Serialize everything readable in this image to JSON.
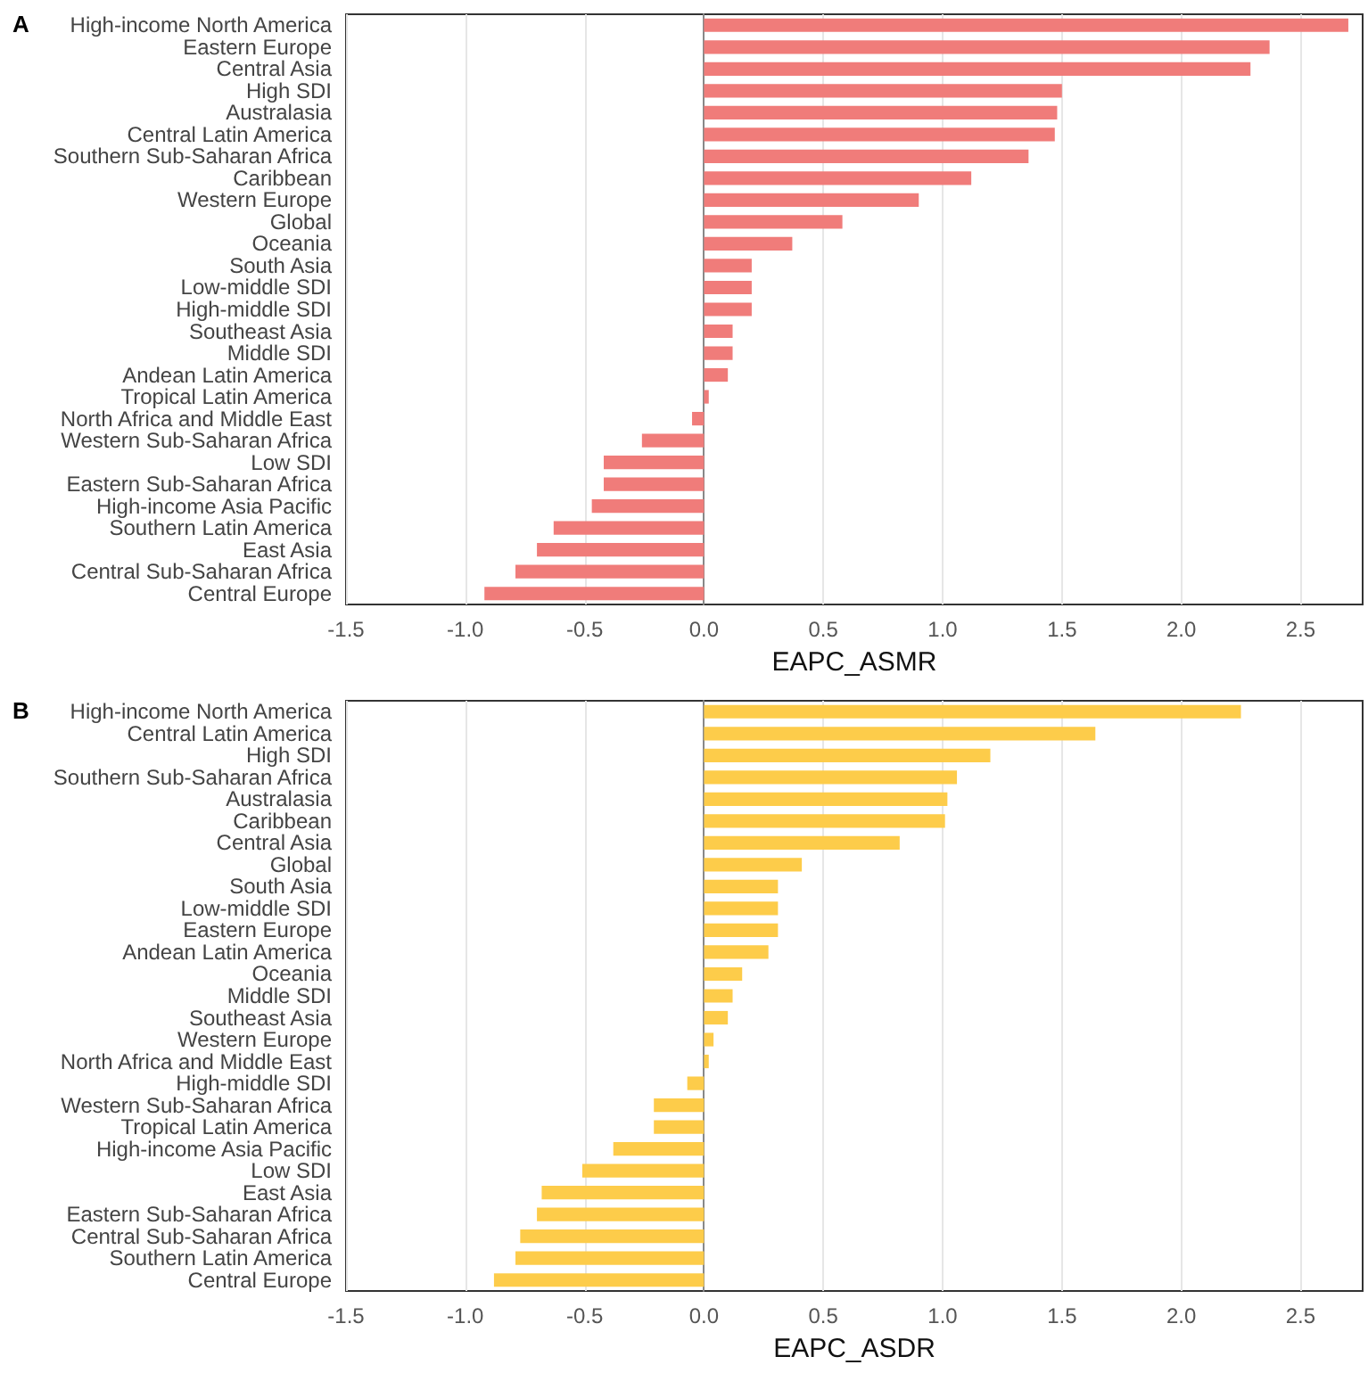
{
  "chart_data": [
    {
      "type": "bar",
      "orientation": "horizontal",
      "title": "A",
      "xlabel": "EAPC_ASMR",
      "color": "#f07c7a",
      "grid": "x",
      "xlim": [
        -1.5,
        2.76
      ],
      "xticks": [
        {
          "value": -1.5,
          "label": "-1.5"
        },
        {
          "value": -1,
          "label": "-1.0"
        },
        {
          "value": -0.5,
          "label": "-0.5"
        },
        {
          "value": 0,
          "label": "0.0"
        },
        {
          "value": 0.5,
          "label": "0.5"
        },
        {
          "value": 1,
          "label": "1.0"
        },
        {
          "value": 1.5,
          "label": "1.5"
        },
        {
          "value": 2,
          "label": "2.0"
        },
        {
          "value": 2.5,
          "label": "2.5"
        }
      ],
      "categories": [
        "High-income North America",
        "Eastern Europe",
        "Central Asia",
        "High SDI",
        "Australasia",
        "Central Latin America",
        "Southern Sub-Saharan Africa",
        "Caribbean",
        "Western Europe",
        "Global",
        "Oceania",
        "South Asia",
        "Low-middle SDI",
        "High-middle SDI",
        "Southeast Asia",
        "Middle SDI",
        "Andean Latin America",
        "Tropical Latin America",
        "North Africa and Middle East",
        "Western Sub-Saharan Africa",
        "Low SDI",
        "Eastern Sub-Saharan Africa",
        "High-income Asia Pacific",
        "Southern Latin America",
        "East Asia",
        "Central Sub-Saharan Africa",
        "Central Europe"
      ],
      "values": [
        2.7,
        2.37,
        2.29,
        1.5,
        1.48,
        1.47,
        1.36,
        1.12,
        0.9,
        0.58,
        0.37,
        0.2,
        0.2,
        0.2,
        0.12,
        0.12,
        0.1,
        0.02,
        -0.05,
        -0.26,
        -0.42,
        -0.42,
        -0.47,
        -0.63,
        -0.7,
        -0.79,
        -0.92
      ]
    },
    {
      "type": "bar",
      "orientation": "horizontal",
      "title": "B",
      "xlabel": "EAPC_ASDR",
      "color": "#fdcc4a",
      "grid": "x",
      "xlim": [
        -1.5,
        2.76
      ],
      "xticks": [
        {
          "value": -1.5,
          "label": "-1.5"
        },
        {
          "value": -1,
          "label": "-1.0"
        },
        {
          "value": -0.5,
          "label": "-0.5"
        },
        {
          "value": 0,
          "label": "0.0"
        },
        {
          "value": 0.5,
          "label": "0.5"
        },
        {
          "value": 1,
          "label": "1.0"
        },
        {
          "value": 1.5,
          "label": "1.5"
        },
        {
          "value": 2,
          "label": "2.0"
        },
        {
          "value": 2.5,
          "label": "2.5"
        }
      ],
      "categories": [
        "High-income North America",
        "Central Latin America",
        "High SDI",
        "Southern Sub-Saharan Africa",
        "Australasia",
        "Caribbean",
        "Central Asia",
        "Global",
        "South Asia",
        "Low-middle SDI",
        "Eastern Europe",
        "Andean Latin America",
        "Oceania",
        "Middle SDI",
        "Southeast Asia",
        "Western Europe",
        "North Africa and Middle East",
        "High-middle SDI",
        "Western Sub-Saharan Africa",
        "Tropical Latin America",
        "High-income Asia Pacific",
        "Low SDI",
        "East Asia",
        "Eastern Sub-Saharan Africa",
        "Central Sub-Saharan Africa",
        "Southern Latin America",
        "Central Europe"
      ],
      "values": [
        2.25,
        1.64,
        1.2,
        1.06,
        1.02,
        1.01,
        0.82,
        0.41,
        0.31,
        0.31,
        0.31,
        0.27,
        0.16,
        0.12,
        0.1,
        0.04,
        0.02,
        -0.07,
        -0.21,
        -0.21,
        -0.38,
        -0.51,
        -0.68,
        -0.7,
        -0.77,
        -0.79,
        -0.88
      ]
    }
  ]
}
